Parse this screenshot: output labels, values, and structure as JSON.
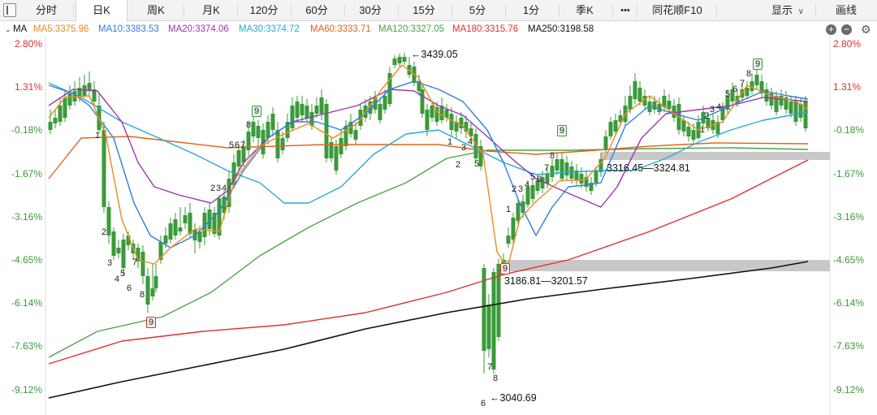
{
  "tabs": [
    {
      "label": "分时",
      "active": false
    },
    {
      "label": "日K",
      "active": true
    },
    {
      "label": "周K",
      "active": false
    },
    {
      "label": "月K",
      "active": false
    },
    {
      "label": "120分",
      "active": false
    },
    {
      "label": "60分",
      "active": false
    },
    {
      "label": "30分",
      "active": false
    },
    {
      "label": "15分",
      "active": false
    },
    {
      "label": "5分",
      "active": false
    },
    {
      "label": "1分",
      "active": false
    },
    {
      "label": "季K",
      "active": false
    },
    {
      "label": "•••",
      "active": false
    },
    {
      "label": "同花顺F10",
      "active": false
    }
  ],
  "toolbar": {
    "display_label": "显示",
    "display_caret": "∨",
    "draw_label": "画线"
  },
  "ma_bar": {
    "title": "MA",
    "items": [
      {
        "label": "MA5:3375.96",
        "color": "#f08a1c"
      },
      {
        "label": "MA10:3383.53",
        "color": "#2f7fe0"
      },
      {
        "label": "MA20:3374.06",
        "color": "#a033b0"
      },
      {
        "label": "MA30:3374.72",
        "color": "#26a9d6"
      },
      {
        "label": "MA60:3333.71",
        "color": "#e0641a"
      },
      {
        "label": "MA120:3327.05",
        "color": "#4aa344"
      },
      {
        "label": "MA180:3315.76",
        "color": "#e03030"
      },
      {
        "label": "MA250:3198.58",
        "color": "#111111"
      }
    ]
  },
  "axis": {
    "ticks": [
      "2.80%",
      "1.31%",
      "-0.18%",
      "-1.67%",
      "-3.16%",
      "-4.65%",
      "-6.14%",
      "-7.63%",
      "-9.12%"
    ],
    "tick_colors": [
      "#e03030",
      "#e03030",
      "#3a9a3a",
      "#3a9a3a",
      "#3a9a3a",
      "#3a9a3a",
      "#3a9a3a",
      "#3a9a3a",
      "#3a9a3a"
    ]
  },
  "annotations": {
    "high": "←3439.05",
    "low": "←3040.69",
    "zone_top": "3316.45—3324.81",
    "zone_bottom": "3186.81—3201.57"
  },
  "td_labels": [
    {
      "t": "1"
    },
    {
      "t": "2"
    },
    {
      "t": "3"
    },
    {
      "t": "4"
    },
    {
      "t": "5"
    },
    {
      "t": "6"
    },
    {
      "t": "7"
    },
    {
      "t": "8"
    },
    {
      "t": "9",
      "flag": true
    },
    {
      "t": "2"
    },
    {
      "t": "3"
    },
    {
      "t": "4"
    },
    {
      "t": "5"
    },
    {
      "t": "6"
    },
    {
      "t": "7"
    },
    {
      "t": "8"
    },
    {
      "t": "9",
      "flag": true
    },
    {
      "t": "1"
    },
    {
      "t": "2"
    },
    {
      "t": "3"
    },
    {
      "t": "4"
    },
    {
      "t": "5"
    },
    {
      "t": "6"
    },
    {
      "t": "7"
    },
    {
      "t": "8"
    },
    {
      "t": "9",
      "flag": true
    },
    {
      "t": "1"
    },
    {
      "t": "2"
    },
    {
      "t": "3"
    },
    {
      "t": "4"
    },
    {
      "t": "5"
    },
    {
      "t": "6"
    },
    {
      "t": "7"
    },
    {
      "t": "8"
    },
    {
      "t": "9",
      "flag": true
    },
    {
      "t": "1"
    },
    {
      "t": "2"
    },
    {
      "t": "3"
    },
    {
      "t": "4"
    },
    {
      "t": "5"
    },
    {
      "t": "6"
    },
    {
      "t": "7"
    },
    {
      "t": "8"
    },
    {
      "t": "9",
      "flag": true
    }
  ],
  "colors": {
    "up": "#e03030",
    "down": "#3a9a3a",
    "zone": "#c8c8c8"
  }
}
